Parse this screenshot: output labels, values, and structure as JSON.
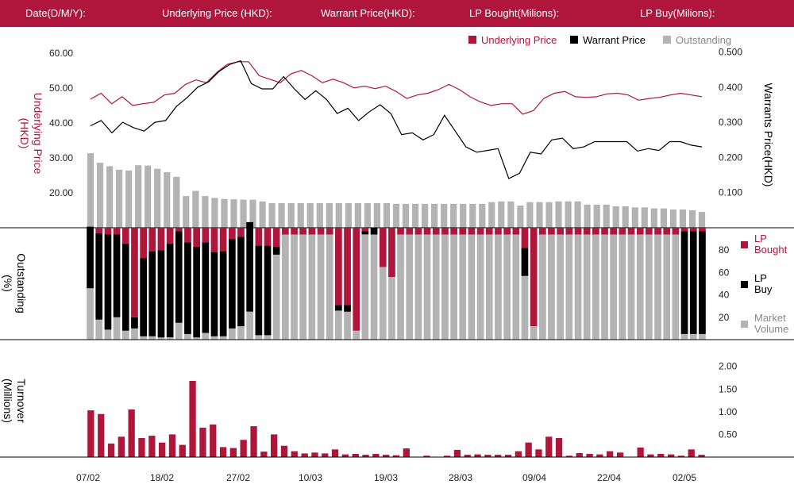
{
  "header": {
    "date_label": "Date(D/M/Y):",
    "underlying_label": "Underlying Price (HKD):",
    "warrant_label": "Warrant  Price(HKD):",
    "lp_bought_label": "LP Bought(Milions):",
    "lp_buy_label": "LP Buy(Milions):"
  },
  "colors": {
    "header_bg": "#b0153b",
    "underlying": "#b0153b",
    "warrant": "#000000",
    "outstanding": "#b3b3b3",
    "turnover": "#b0153b"
  },
  "chart_data": [
    {
      "type": "line",
      "legend": [
        "Underlying Price",
        "Warrant  Price",
        "Outstanding"
      ],
      "legend_position": "top-right",
      "ylabel_left": "Underlying Price (HKD)",
      "ylabel_right": "Warrants  Price(HKD)",
      "yticks_left": [
        "60.00",
        "50.00",
        "40.00",
        "30.00",
        "20.00"
      ],
      "yticks_right": [
        "0.500",
        "0.400",
        "0.300",
        "0.200",
        "0.100"
      ],
      "ylim_left": [
        10,
        62
      ],
      "ylim_right": [
        0.0,
        0.517
      ],
      "series": [
        {
          "name": "Underlying Price",
          "axis": "left",
          "values": [
            46.8,
            48.5,
            45.5,
            47.5,
            45.0,
            45.5,
            45.9,
            48.0,
            48.5,
            51.0,
            52.3,
            51.5,
            54.5,
            56.8,
            57.5,
            57.5,
            53.5,
            52.5,
            51.5,
            54.0,
            55.0,
            53.5,
            51.5,
            52.5,
            51.5,
            50.0,
            50.5,
            49.8,
            50.5,
            49.0,
            47.0,
            48.0,
            48.5,
            49.5,
            51.0,
            49.5,
            47.5,
            46.0,
            45.0,
            45.5,
            45.5,
            42.5,
            43.5,
            47.0,
            48.5,
            49.0,
            47.5,
            47.3,
            47.5,
            48.3,
            48.5,
            48.0,
            46.5,
            47.0,
            47.3,
            48.0,
            48.5,
            48.0,
            47.5
          ]
        },
        {
          "name": "Warrant  Price",
          "axis": "right",
          "values": [
            0.29,
            0.305,
            0.27,
            0.3,
            0.285,
            0.275,
            0.3,
            0.305,
            0.345,
            0.37,
            0.4,
            0.415,
            0.445,
            0.465,
            0.475,
            0.41,
            0.395,
            0.395,
            0.43,
            0.395,
            0.365,
            0.39,
            0.365,
            0.325,
            0.34,
            0.305,
            0.33,
            0.35,
            0.325,
            0.265,
            0.27,
            0.25,
            0.265,
            0.32,
            0.275,
            0.23,
            0.215,
            0.22,
            0.225,
            0.14,
            0.155,
            0.215,
            0.21,
            0.25,
            0.255,
            0.225,
            0.23,
            0.245,
            0.245,
            0.245,
            0.245,
            0.218,
            0.225,
            0.22,
            0.245,
            0.245,
            0.235,
            0.23
          ]
        },
        {
          "name": "Outstanding",
          "axis": "right",
          "style": "bar",
          "values": [
            0.212,
            0.185,
            0.175,
            0.165,
            0.163,
            0.178,
            0.177,
            0.168,
            0.158,
            0.145,
            0.09,
            0.105,
            0.09,
            0.085,
            0.082,
            0.081,
            0.08,
            0.08,
            0.075,
            0.07,
            0.07,
            0.07,
            0.07,
            0.07,
            0.07,
            0.07,
            0.07,
            0.07,
            0.07,
            0.07,
            0.07,
            0.07,
            0.068,
            0.068,
            0.068,
            0.068,
            0.068,
            0.068,
            0.068,
            0.068,
            0.068,
            0.068,
            0.073,
            0.075,
            0.075,
            0.063,
            0.073,
            0.073,
            0.073,
            0.075,
            0.075,
            0.075,
            0.066,
            0.066,
            0.066,
            0.061,
            0.061,
            0.058,
            0.058,
            0.055,
            0.055,
            0.052,
            0.052,
            0.05,
            0.045
          ]
        }
      ]
    },
    {
      "type": "bar",
      "stacked": true,
      "legend": [
        "LP Bought",
        "LP Buy",
        "Market Volume"
      ],
      "legend_position": "right",
      "ylabel": "Outstanding (%)",
      "yticks": [
        "80",
        "60",
        "40",
        "20"
      ],
      "ylim": [
        0,
        100
      ],
      "series": [
        {
          "name": "LP Bought",
          "values": [
            5,
            5,
            4,
            4,
            3,
            78,
            7,
            4,
            3,
            4,
            3,
            3,
            3,
            3,
            4,
            4,
            4,
            4,
            4,
            4,
            4,
            4,
            3,
            3,
            3,
            3,
            3,
            3,
            70,
            67,
            4,
            4,
            4,
            4,
            4,
            3,
            4,
            4,
            4,
            4,
            4,
            5,
            5,
            4,
            4,
            4,
            4,
            4,
            4,
            4,
            60,
            4,
            4,
            4,
            4,
            4,
            4,
            4,
            4,
            4,
            4,
            4,
            4,
            4,
            4,
            4,
            4,
            0,
            0,
            0
          ]
        },
        {
          "name": "LP Buy",
          "values": [
            55,
            77,
            85,
            74,
            78,
            10,
            70,
            76,
            78,
            84,
            82,
            82,
            81,
            81,
            75,
            76,
            80,
            80,
            80,
            80,
            80,
            7,
            0,
            0,
            0,
            0,
            0,
            0,
            5,
            6,
            0,
            3,
            6,
            0,
            0,
            0,
            0,
            0,
            0,
            0,
            0,
            0,
            0,
            0,
            0,
            0,
            0,
            0,
            0,
            25,
            0,
            0,
            0,
            0,
            0,
            0,
            0,
            0,
            0,
            0,
            0,
            0,
            0,
            0,
            0,
            0,
            0,
            92,
            92,
            92
          ]
        },
        {
          "name": "Market Volume",
          "values": [
            46,
            18,
            9,
            20,
            8,
            10,
            3,
            3,
            2,
            2,
            15,
            5,
            2,
            6,
            3,
            3,
            10,
            12,
            25,
            4,
            4,
            76,
            94,
            94,
            94,
            94,
            94,
            94,
            26,
            25,
            8,
            94,
            94,
            65,
            56,
            94,
            94,
            94,
            94,
            94,
            94,
            94,
            94,
            94,
            94,
            94,
            94,
            94,
            94,
            57,
            12,
            94,
            94,
            94,
            94,
            94,
            94,
            94,
            94,
            94,
            94,
            94,
            94,
            94,
            94,
            94,
            94,
            5,
            5,
            5
          ]
        }
      ]
    },
    {
      "type": "bar",
      "ylabel": "Turnover (Millions)",
      "yticks": [
        "2.00",
        "1.50",
        "1.00",
        "0.50"
      ],
      "ylim": [
        0,
        2.1
      ],
      "xticks": [
        "07/02",
        "18/02",
        "27/02",
        "10/03",
        "19/03",
        "28/03",
        "09/04",
        "22/04",
        "02/05"
      ],
      "values": [
        1.03,
        0.95,
        0.3,
        0.45,
        1.05,
        0.42,
        0.47,
        0.32,
        0.5,
        0.27,
        1.68,
        0.65,
        0.72,
        0.22,
        0.2,
        0.38,
        0.68,
        0.12,
        0.5,
        0.25,
        0.13,
        0.08,
        0.1,
        0.08,
        0.17,
        0.06,
        0.07,
        0.05,
        0.07,
        0.05,
        0.04,
        0.19,
        0.0,
        0.03,
        0.0,
        0.03,
        0.16,
        0.05,
        0.06,
        0.05,
        0.05,
        0.05,
        0.13,
        0.32,
        0.17,
        0.45,
        0.42,
        0.03,
        0.09,
        0.07,
        0.06,
        0.13,
        0.1,
        0.0,
        0.21,
        0.06,
        0.07,
        0.06,
        0.03,
        0.17,
        0.05
      ]
    }
  ]
}
